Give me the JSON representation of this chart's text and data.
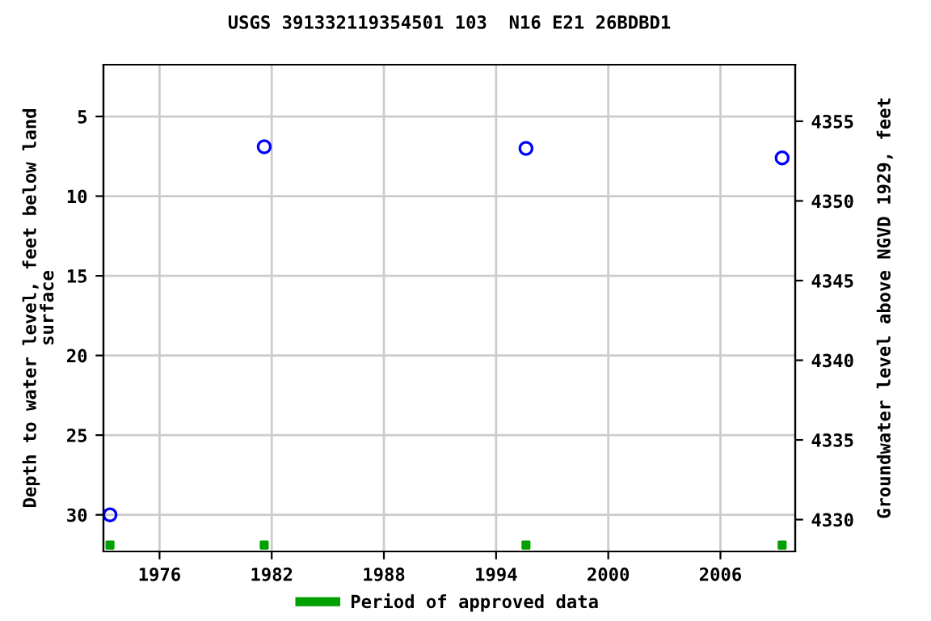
{
  "chart_data": {
    "type": "scatter",
    "title": "USGS 391332119354501 103  N16 E21 26BDBD1",
    "xlabel": null,
    "ylabel": "Depth to water level, feet below land\nsurface",
    "y2label": "Groundwater level above NGVD 1929, feet",
    "series": [
      {
        "color": "#0000ff",
        "marker": "circle",
        "x": [
          1973.35,
          1981.6,
          1995.6,
          2009.3
        ],
        "values": [
          30.0,
          6.9,
          7.0,
          7.6
        ]
      },
      {
        "name": "Period of approved data",
        "color": "#00a000",
        "marker": "square",
        "x": [
          1973.35,
          1981.6,
          1995.6,
          2009.3
        ],
        "values": [
          31.9,
          31.9,
          31.9,
          31.9
        ]
      }
    ],
    "xlim": [
      1973,
      2010
    ],
    "xticks": [
      1976,
      1982,
      1988,
      1994,
      2000,
      2006
    ],
    "ylim": [
      32.3,
      1.75
    ],
    "yticks": [
      5,
      10,
      15,
      20,
      25,
      30
    ],
    "y2lim": [
      4328.0,
      4358.55
    ],
    "y2ticks": [
      4330,
      4335,
      4340,
      4345,
      4350,
      4355
    ],
    "grid": true,
    "legend": "bottom"
  }
}
